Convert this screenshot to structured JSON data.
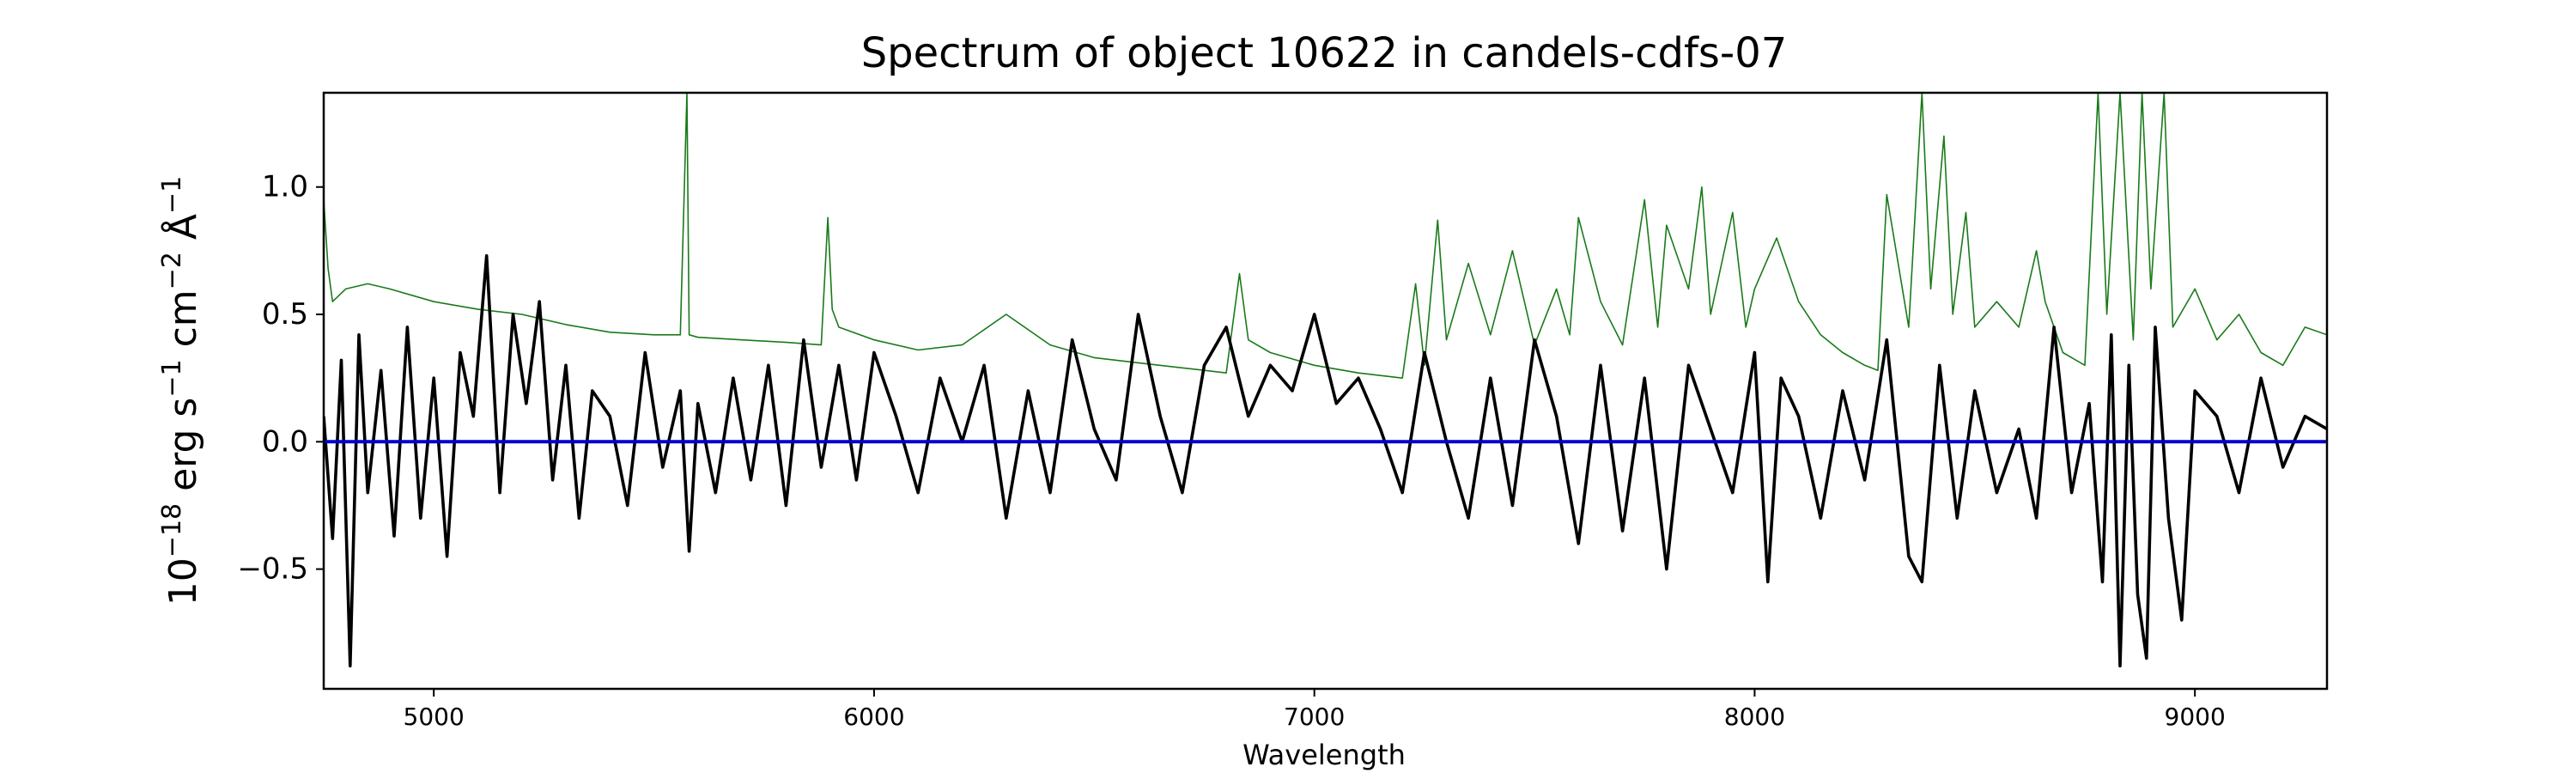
{
  "chart_data": {
    "type": "line",
    "title": "Spectrum of object 10622 in candels-cdfs-07",
    "xlabel": "Wavelength",
    "ylabel": {
      "base": "10",
      "exp1": "−18",
      "mid1": " erg s",
      "exp2": "−1",
      "mid2": " cm",
      "exp3": "−2",
      "mid3": " Å",
      "exp4": "−1"
    },
    "xlim": [
      4750,
      9300
    ],
    "ylim": [
      -0.97,
      1.37
    ],
    "x_ticks": [
      5000,
      6000,
      7000,
      8000,
      9000
    ],
    "x_tick_labels": [
      "5000",
      "6000",
      "7000",
      "8000",
      "9000"
    ],
    "y_ticks": [
      -0.5,
      0.0,
      0.5,
      1.0
    ],
    "y_tick_labels": [
      "−0.5",
      "0.0",
      "0.5",
      "1.0"
    ],
    "grid": false,
    "series": [
      {
        "role": "noise",
        "color": "#1a7a1a",
        "x": [
          4750,
          4760,
          4770,
          4800,
          4850,
          4900,
          5000,
          5100,
          5200,
          5300,
          5400,
          5500,
          5560,
          5575,
          5580,
          5600,
          5700,
          5800,
          5880,
          5895,
          5905,
          5920,
          6000,
          6100,
          6200,
          6300,
          6400,
          6500,
          6600,
          6700,
          6800,
          6830,
          6850,
          6900,
          7000,
          7100,
          7200,
          7230,
          7250,
          7280,
          7300,
          7350,
          7400,
          7450,
          7500,
          7550,
          7580,
          7600,
          7650,
          7700,
          7750,
          7780,
          7800,
          7850,
          7880,
          7900,
          7950,
          7980,
          8000,
          8050,
          8100,
          8150,
          8200,
          8250,
          8280,
          8300,
          8350,
          8380,
          8400,
          8430,
          8450,
          8480,
          8500,
          8550,
          8600,
          8640,
          8660,
          8700,
          8750,
          8780,
          8800,
          8830,
          8860,
          8880,
          8900,
          8930,
          8950,
          9000,
          9050,
          9100,
          9150,
          9200,
          9250,
          9300
        ],
        "values": [
          0.95,
          0.68,
          0.55,
          0.6,
          0.62,
          0.6,
          0.55,
          0.52,
          0.5,
          0.46,
          0.43,
          0.42,
          0.42,
          1.37,
          0.42,
          0.41,
          0.4,
          0.39,
          0.38,
          0.88,
          0.52,
          0.45,
          0.4,
          0.36,
          0.38,
          0.5,
          0.38,
          0.33,
          0.31,
          0.29,
          0.27,
          0.66,
          0.4,
          0.35,
          0.3,
          0.27,
          0.25,
          0.62,
          0.3,
          0.87,
          0.4,
          0.7,
          0.42,
          0.75,
          0.38,
          0.6,
          0.42,
          0.88,
          0.55,
          0.38,
          0.95,
          0.45,
          0.85,
          0.6,
          1.0,
          0.5,
          0.9,
          0.45,
          0.6,
          0.8,
          0.55,
          0.42,
          0.35,
          0.3,
          0.28,
          0.97,
          0.45,
          1.37,
          0.6,
          1.2,
          0.5,
          0.9,
          0.45,
          0.55,
          0.45,
          0.75,
          0.55,
          0.35,
          0.3,
          1.37,
          0.5,
          1.37,
          0.4,
          1.37,
          0.6,
          1.37,
          0.45,
          0.6,
          0.4,
          0.5,
          0.35,
          0.3,
          0.45,
          0.42
        ]
      },
      {
        "role": "flux",
        "color": "#000000",
        "x": [
          4750,
          4770,
          4790,
          4810,
          4830,
          4850,
          4880,
          4910,
          4940,
          4970,
          5000,
          5030,
          5060,
          5090,
          5120,
          5150,
          5180,
          5210,
          5240,
          5270,
          5300,
          5330,
          5360,
          5400,
          5440,
          5480,
          5520,
          5560,
          5580,
          5600,
          5640,
          5680,
          5720,
          5760,
          5800,
          5840,
          5880,
          5920,
          5960,
          6000,
          6050,
          6100,
          6150,
          6200,
          6250,
          6300,
          6350,
          6400,
          6450,
          6500,
          6550,
          6600,
          6650,
          6700,
          6750,
          6800,
          6850,
          6900,
          6950,
          7000,
          7050,
          7100,
          7150,
          7200,
          7250,
          7300,
          7350,
          7400,
          7450,
          7500,
          7550,
          7600,
          7650,
          7700,
          7750,
          7800,
          7850,
          7900,
          7950,
          8000,
          8030,
          8060,
          8100,
          8150,
          8200,
          8250,
          8300,
          8350,
          8380,
          8420,
          8460,
          8500,
          8550,
          8600,
          8640,
          8680,
          8720,
          8760,
          8790,
          8810,
          8830,
          8850,
          8870,
          8890,
          8910,
          8940,
          8970,
          9000,
          9050,
          9100,
          9150,
          9200,
          9250,
          9300
        ],
        "values": [
          0.1,
          -0.38,
          0.32,
          -0.88,
          0.42,
          -0.2,
          0.28,
          -0.37,
          0.45,
          -0.3,
          0.25,
          -0.45,
          0.35,
          0.1,
          0.73,
          -0.2,
          0.5,
          0.15,
          0.55,
          -0.15,
          0.3,
          -0.3,
          0.2,
          0.1,
          -0.25,
          0.35,
          -0.1,
          0.2,
          -0.43,
          0.15,
          -0.2,
          0.25,
          -0.15,
          0.3,
          -0.25,
          0.4,
          -0.1,
          0.3,
          -0.15,
          0.35,
          0.1,
          -0.2,
          0.25,
          0.0,
          0.3,
          -0.3,
          0.2,
          -0.2,
          0.4,
          0.05,
          -0.15,
          0.5,
          0.1,
          -0.2,
          0.3,
          0.45,
          0.1,
          0.3,
          0.2,
          0.5,
          0.15,
          0.25,
          0.05,
          -0.2,
          0.35,
          0.0,
          -0.3,
          0.25,
          -0.25,
          0.4,
          0.1,
          -0.4,
          0.3,
          -0.35,
          0.25,
          -0.5,
          0.3,
          0.05,
          -0.2,
          0.35,
          -0.55,
          0.25,
          0.1,
          -0.3,
          0.2,
          -0.15,
          0.4,
          -0.45,
          -0.55,
          0.3,
          -0.3,
          0.2,
          -0.2,
          0.05,
          -0.3,
          0.45,
          -0.2,
          0.15,
          -0.55,
          0.42,
          -0.88,
          0.3,
          -0.6,
          -0.85,
          0.45,
          -0.3,
          -0.7,
          0.2,
          0.1,
          -0.2,
          0.25,
          -0.1,
          0.1,
          0.05
        ]
      },
      {
        "role": "zero-line",
        "color": "#0000cc",
        "x": [
          4750,
          9300
        ],
        "values": [
          0.0,
          0.0
        ]
      }
    ]
  }
}
